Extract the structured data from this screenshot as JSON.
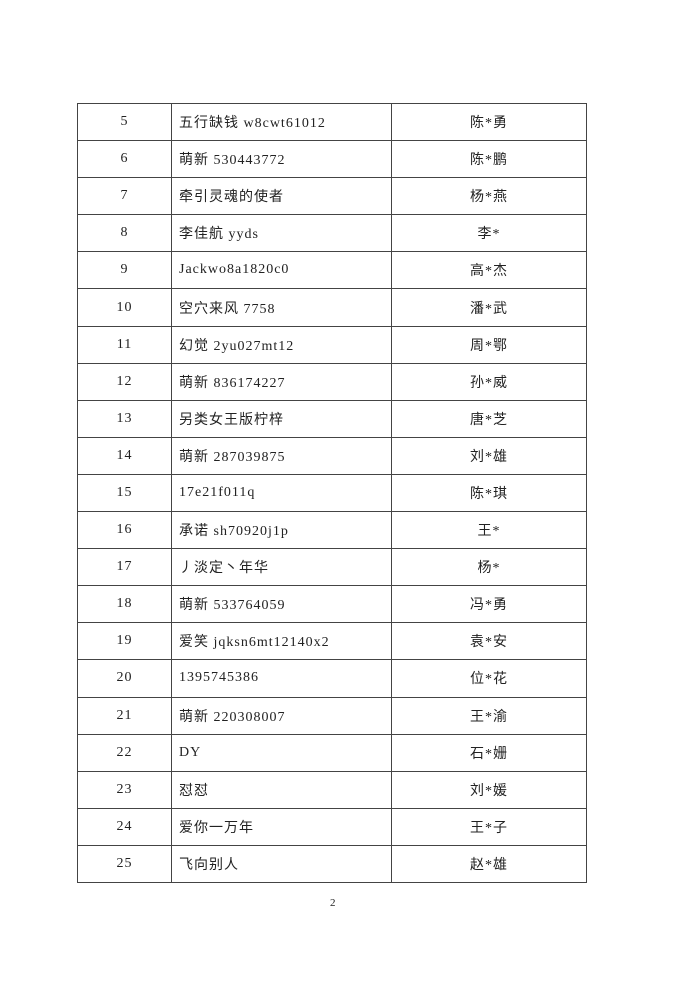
{
  "rows": [
    {
      "no": "5",
      "nickname": "五行缺钱 w8cwt61012",
      "name": "陈*勇"
    },
    {
      "no": "6",
      "nickname": "萌新 530443772",
      "name": "陈*鹏"
    },
    {
      "no": "7",
      "nickname": "牵引灵魂的使者",
      "name": "杨*燕"
    },
    {
      "no": "8",
      "nickname": "李佳航 yyds",
      "name": "李*"
    },
    {
      "no": "9",
      "nickname": "Jackwo8a1820c0",
      "name": "高*杰"
    },
    {
      "no": "10",
      "nickname": "空穴来风 7758",
      "name": "潘*武"
    },
    {
      "no": "11",
      "nickname": "幻觉 2yu027mt12",
      "name": "周*鄂"
    },
    {
      "no": "12",
      "nickname": "萌新 836174227",
      "name": "孙*威"
    },
    {
      "no": "13",
      "nickname": "另类女王版柠梓",
      "name": "唐*芝"
    },
    {
      "no": "14",
      "nickname": "萌新 287039875",
      "name": "刘*雄"
    },
    {
      "no": "15",
      "nickname": "17e21f011q",
      "name": "陈*琪"
    },
    {
      "no": "16",
      "nickname": "承诺 sh70920j1p",
      "name": "王*"
    },
    {
      "no": "17",
      "nickname": "丿淡定丶年华",
      "name": "杨*"
    },
    {
      "no": "18",
      "nickname": "萌新 533764059",
      "name": "冯*勇"
    },
    {
      "no": "19",
      "nickname": "爱笑 jqksn6mt12140x2",
      "name": "袁*安"
    },
    {
      "no": "20",
      "nickname": "1395745386",
      "name": "位*花"
    },
    {
      "no": "21",
      "nickname": "萌新 220308007",
      "name": "王*渝"
    },
    {
      "no": "22",
      "nickname": "DY",
      "name": "石*姗"
    },
    {
      "no": "23",
      "nickname": "怼怼",
      "name": "刘*媛"
    },
    {
      "no": "24",
      "nickname": "爱你一万年",
      "name": "王*子"
    },
    {
      "no": "25",
      "nickname": "飞向别人",
      "name": "赵*雄"
    }
  ],
  "page_number": "2"
}
